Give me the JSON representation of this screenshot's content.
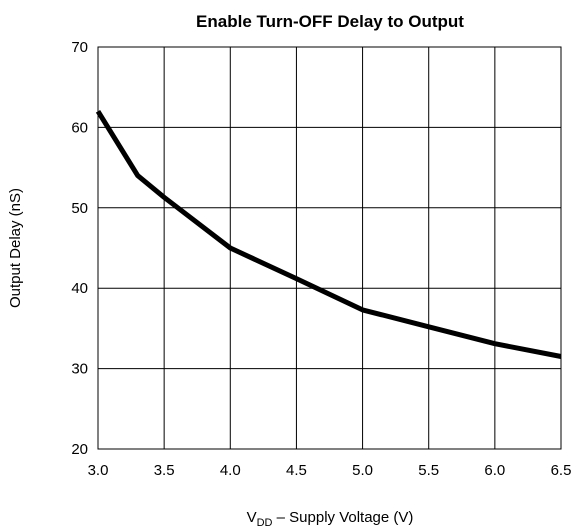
{
  "chart_data": {
    "type": "line",
    "title": "Enable Turn-OFF Delay to Output",
    "xlabel": {
      "prefix": "V",
      "subscript": "DD",
      "suffix": " – Supply Voltage (V)"
    },
    "ylabel": "Output Delay (nS)",
    "xlim": [
      3.0,
      6.5
    ],
    "ylim": [
      20,
      70
    ],
    "x_ticks": [
      "3.0",
      "3.5",
      "4.0",
      "4.5",
      "5.0",
      "5.5",
      "6.0",
      "6.5"
    ],
    "y_ticks": [
      "20",
      "30",
      "40",
      "50",
      "60",
      "70"
    ],
    "grid": true,
    "series": [
      {
        "color": "#000000",
        "x": [
          3.0,
          3.3,
          3.5,
          4.0,
          4.5,
          5.0,
          5.5,
          6.0,
          6.5
        ],
        "y": [
          62,
          54,
          51.3,
          45,
          41.2,
          37.3,
          35.2,
          33.1,
          31.5
        ]
      }
    ]
  }
}
